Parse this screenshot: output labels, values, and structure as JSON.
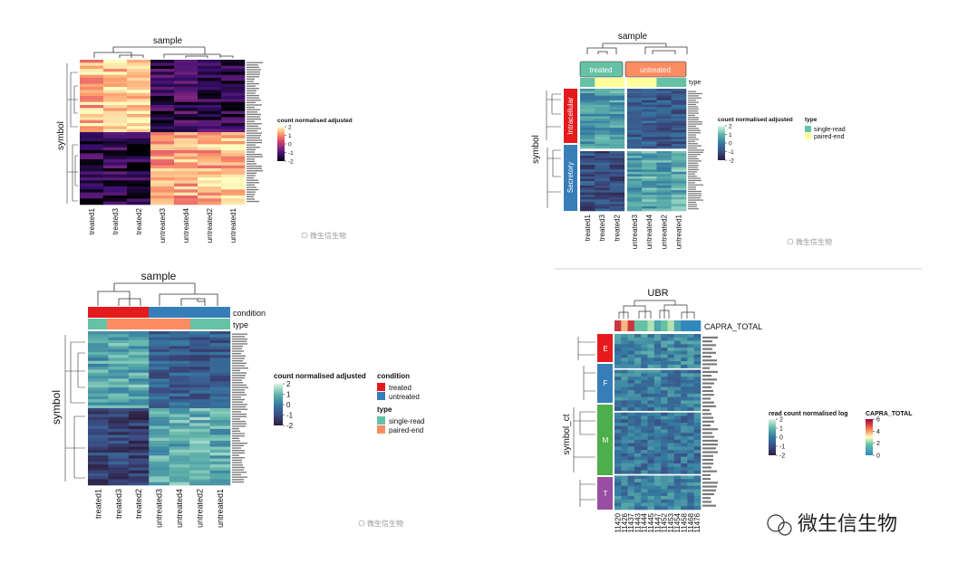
{
  "panels": {
    "p1": {
      "col_dendro_title": "sample",
      "row_label": "symbol",
      "columns": [
        "treated1",
        "treated3",
        "treated2",
        "untreated3",
        "untreated4",
        "untreated2",
        "untreated1"
      ],
      "legend_title": "count normalised adjusted",
      "legend_ticks": [
        "2",
        "1",
        "0",
        "-1",
        "-2"
      ],
      "palette": [
        "#000004",
        "#3b0f70",
        "#8c2981",
        "#de4968",
        "#fe9f6d",
        "#fcfdbf"
      ]
    },
    "p2": {
      "col_dendro_title": "sample",
      "row_label": "symbol",
      "columns": [
        "treated1",
        "treated3",
        "treated2",
        "untreated3",
        "untreated4",
        "untreated2",
        "untreated1"
      ],
      "col_groups": [
        "treated",
        "untreated"
      ],
      "type_label": "type",
      "row_groups": [
        "Intracellular",
        "Secretory"
      ],
      "legend_title": "count normalised adjusted",
      "legend2_title": "type",
      "legend_ticks": [
        "2",
        "1",
        "0",
        "-1",
        "-2"
      ],
      "type_entries": [
        "single-read",
        "paired-end"
      ],
      "type_colors": [
        "#66c2a5",
        "#ffff99"
      ],
      "group_colors": [
        "#66c2a5",
        "#fc8d62"
      ],
      "rowgroup_colors": [
        "#e41a1c",
        "#377eb8"
      ]
    },
    "p3": {
      "col_dendro_title": "sample",
      "row_label": "symbol",
      "columns": [
        "treated1",
        "treated3",
        "treated2",
        "untreated3",
        "untreated4",
        "untreated2",
        "untreated1"
      ],
      "annot1_label": "condition",
      "annot2_label": "type",
      "legend_title": "count normalised adjusted",
      "legend_ticks": [
        "2",
        "1",
        "0",
        "-1",
        "-2"
      ],
      "legend2_title": "condition",
      "condition_entries": [
        "treated",
        "untreated"
      ],
      "condition_colors": [
        "#e41a1c",
        "#377eb8"
      ],
      "legend3_title": "type",
      "type_entries": [
        "single-read",
        "paired-end"
      ],
      "type_colors": [
        "#66c2a5",
        "#fc8d62"
      ]
    },
    "p4": {
      "col_dendro_title": "UBR",
      "row_label": "symbol_ct",
      "annot_label": "CAPRA_TOTAL",
      "row_groups": [
        "E",
        "F",
        "M",
        "T"
      ],
      "rowgroup_colors": [
        "#e41a1c",
        "#377eb8",
        "#4daf4a",
        "#984ea3"
      ],
      "columns": [
        "11420",
        "11426",
        "11437",
        "11443",
        "11444",
        "11445",
        "11447",
        "11452",
        "11453",
        "11454",
        "11458",
        "11468",
        "11476"
      ],
      "legend_title": "read count normalised log",
      "legend_ticks": [
        "2",
        "1",
        "0",
        "-1",
        "-2"
      ],
      "legend2_title": "CAPRA_TOTAL",
      "legend2_ticks": [
        "6",
        "4",
        "2",
        "0"
      ]
    }
  },
  "watermarks": {
    "small": "微生信生物",
    "large": "微生信生物"
  },
  "chart_data": [
    {
      "type": "heatmap",
      "title": "",
      "x": [
        "treated1",
        "treated3",
        "treated2",
        "untreated3",
        "untreated4",
        "untreated2",
        "untreated1"
      ],
      "ylabel": "symbol",
      "clusters": [
        {
          "name": "",
          "rows": 24,
          "values": [
            1.4,
            1.5,
            1.6,
            -1.3,
            -1.2,
            -1.4,
            -1.5
          ]
        },
        {
          "name": "",
          "rows": 24,
          "values": [
            -1.5,
            -1.4,
            -1.6,
            1.2,
            1.3,
            1.4,
            1.5
          ]
        }
      ],
      "color_range": [
        -2,
        2
      ]
    },
    {
      "type": "heatmap",
      "title": "",
      "x": [
        "treated1",
        "treated3",
        "treated2",
        "untreated3",
        "untreated4",
        "untreated2",
        "untreated1"
      ],
      "ylabel": "symbol",
      "clusters": [
        {
          "name": "Intracellular",
          "rows": 26,
          "values": [
            0.4,
            0.5,
            0.6,
            -0.7,
            -0.6,
            -0.8,
            -0.7
          ]
        },
        {
          "name": "Secretory",
          "rows": 26,
          "values": [
            -0.9,
            -1.0,
            -1.1,
            0.6,
            0.7,
            0.6,
            0.8
          ]
        }
      ],
      "color_range": [
        -2,
        2
      ]
    },
    {
      "type": "heatmap",
      "title": "",
      "x": [
        "treated1",
        "treated3",
        "treated2",
        "untreated3",
        "untreated4",
        "untreated2",
        "untreated1"
      ],
      "ylabel": "symbol",
      "clusters": [
        {
          "name": "",
          "rows": 26,
          "values": [
            0.6,
            0.7,
            0.8,
            -0.6,
            -0.5,
            -0.7,
            -0.6
          ]
        },
        {
          "name": "",
          "rows": 26,
          "values": [
            -1.2,
            -1.1,
            -1.3,
            0.7,
            0.8,
            0.9,
            0.8
          ]
        }
      ],
      "color_range": [
        -2,
        2
      ]
    },
    {
      "type": "heatmap",
      "title": "",
      "x": [
        "11420",
        "11426",
        "11437",
        "11443",
        "11444",
        "11445",
        "11447",
        "11452",
        "11453",
        "11454",
        "11458",
        "11468",
        "11476"
      ],
      "ylabel": "symbol_ct",
      "clusters": [
        {
          "name": "E",
          "rows": 10,
          "values": [
            0.2
          ]
        },
        {
          "name": "F",
          "rows": 12,
          "values": [
            0.0
          ]
        },
        {
          "name": "M",
          "rows": 18,
          "values": [
            -0.2
          ]
        },
        {
          "name": "T",
          "rows": 10,
          "values": [
            0.1
          ]
        }
      ],
      "annotation": {
        "name": "CAPRA_TOTAL",
        "values": [
          7,
          5,
          7,
          2,
          2,
          3,
          1,
          2,
          3,
          1,
          0,
          0,
          0
        ]
      },
      "color_range": [
        -2,
        2
      ]
    }
  ]
}
